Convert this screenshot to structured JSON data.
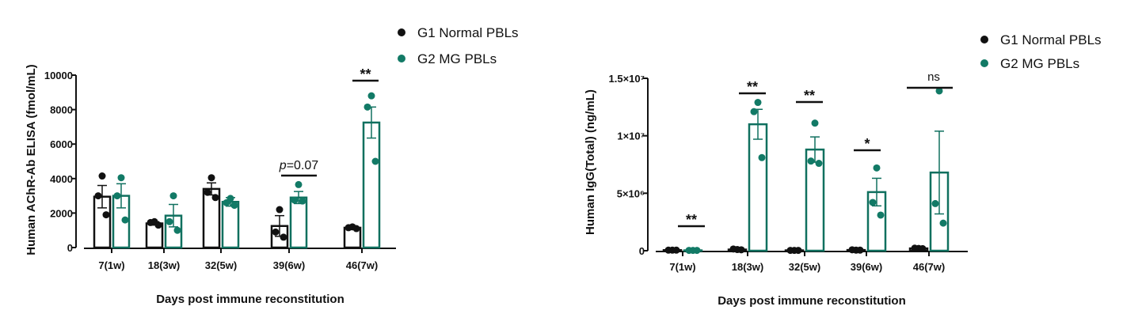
{
  "colors": {
    "g1": "#111111",
    "g2": "#10705f",
    "g2_dot": "#127a66"
  },
  "chart_data": [
    {
      "type": "bar",
      "ylabel": "Human AChR-Ab ELISA (fmol/mL)",
      "xlabel": "Days post immune reconstitution",
      "ylim": [
        0,
        10000
      ],
      "yticks": [
        0,
        2000,
        4000,
        6000,
        8000,
        10000
      ],
      "ytick_labels": [
        "0",
        "2000",
        "4000",
        "6000",
        "8000",
        "10000"
      ],
      "categories": [
        "7(1w)",
        "18(3w)",
        "32(5w)",
        "39(6w)",
        "46(7w)"
      ],
      "legend": {
        "position": "top-right",
        "entries": [
          "G1 Normal PBLs",
          "G2 MG PBLs"
        ]
      },
      "series": [
        {
          "name": "G1 Normal PBLs",
          "values": [
            2950,
            1400,
            3400,
            1250,
            1150
          ],
          "sem": [
            650,
            100,
            350,
            600,
            100
          ],
          "points": [
            [
              4150,
              3000,
              1900
            ],
            [
              1500,
              1450,
              1300
            ],
            [
              4050,
              3200,
              2900
            ],
            [
              2200,
              900,
              600
            ],
            [
              1200,
              1150,
              1100
            ]
          ]
        },
        {
          "name": "G2 MG PBLs",
          "values": [
            3000,
            1850,
            2650,
            2900,
            7250
          ],
          "sem": [
            700,
            650,
            250,
            350,
            900
          ],
          "points": [
            [
              4050,
              3000,
              1600
            ],
            [
              3000,
              1500,
              1000
            ],
            [
              2850,
              2600,
              2450
            ],
            [
              3650,
              2750,
              2700
            ],
            [
              8800,
              8150,
              5000
            ]
          ]
        }
      ],
      "annotations": [
        {
          "category_index": 3,
          "text": "p=0.07"
        },
        {
          "category_index": 4,
          "text": "**"
        }
      ]
    },
    {
      "type": "bar",
      "ylabel": "Human IgG(Total) (ng/mL)",
      "xlabel": "Days post immune reconstitution",
      "ylim": [
        0,
        15000000
      ],
      "yticks": [
        0,
        5000000,
        10000000,
        15000000
      ],
      "ytick_labels": [
        "0",
        "5×10⁶",
        "1×10⁷",
        "1.5×10⁷"
      ],
      "categories": [
        "7(1w)",
        "18(3w)",
        "32(5w)",
        "39(6w)",
        "46(7w)"
      ],
      "legend": {
        "position": "top-right",
        "entries": [
          "G1 Normal PBLs",
          "G2 MG PBLs"
        ]
      },
      "series": [
        {
          "name": "G1 Normal PBLs",
          "values": [
            50000,
            100000,
            30000,
            60000,
            200000
          ],
          "sem": [
            20000,
            30000,
            10000,
            20000,
            30000
          ],
          "points": [
            [
              50000,
              50000,
              50000
            ],
            [
              100000,
              150000,
              80000
            ],
            [
              30000,
              30000,
              30000
            ],
            [
              50000,
              80000,
              50000
            ],
            [
              200000,
              220000,
              180000
            ]
          ]
        },
        {
          "name": "G2 MG PBLs",
          "values": [
            30000,
            11000000,
            8800000,
            5100000,
            6800000
          ],
          "sem": [
            10000,
            1300000,
            1100000,
            1200000,
            3600000
          ],
          "points": [
            [
              30000,
              30000,
              30000
            ],
            [
              12900000,
              12100000,
              8100000
            ],
            [
              11100000,
              7800000,
              7600000
            ],
            [
              7200000,
              4200000,
              3100000
            ],
            [
              13900000,
              4100000,
              2400000
            ]
          ]
        }
      ],
      "annotations": [
        {
          "category_index": 0,
          "text": "**"
        },
        {
          "category_index": 1,
          "text": "**"
        },
        {
          "category_index": 2,
          "text": "**"
        },
        {
          "category_index": 3,
          "text": "*"
        },
        {
          "category_index": 4,
          "text": "ns"
        }
      ]
    }
  ]
}
